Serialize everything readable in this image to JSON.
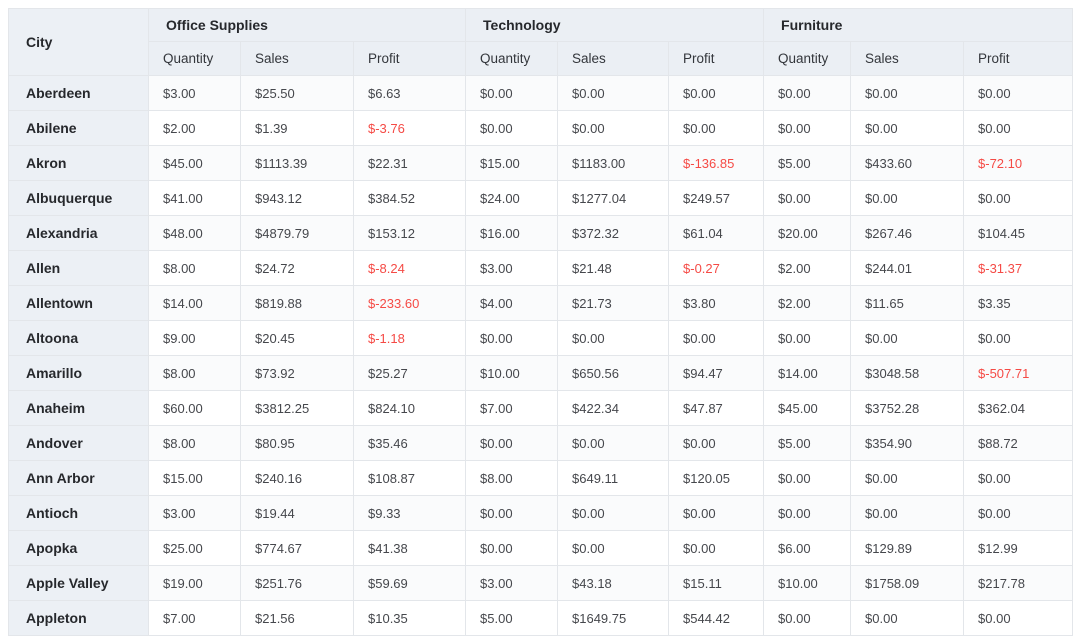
{
  "chart_data": {
    "type": "table",
    "row_header": "City",
    "column_groups": [
      {
        "label": "Office Supplies"
      },
      {
        "label": "Technology"
      },
      {
        "label": "Furniture"
      }
    ],
    "measures": [
      "Quantity",
      "Sales",
      "Profit"
    ],
    "rows": [
      {
        "city": "Aberdeen",
        "values": [
          "$3.00",
          "$25.50",
          "$6.63",
          "$0.00",
          "$0.00",
          "$0.00",
          "$0.00",
          "$0.00",
          "$0.00"
        ]
      },
      {
        "city": "Abilene",
        "values": [
          "$2.00",
          "$1.39",
          "$-3.76",
          "$0.00",
          "$0.00",
          "$0.00",
          "$0.00",
          "$0.00",
          "$0.00"
        ]
      },
      {
        "city": "Akron",
        "values": [
          "$45.00",
          "$1113.39",
          "$22.31",
          "$15.00",
          "$1183.00",
          "$-136.85",
          "$5.00",
          "$433.60",
          "$-72.10"
        ]
      },
      {
        "city": "Albuquerque",
        "values": [
          "$41.00",
          "$943.12",
          "$384.52",
          "$24.00",
          "$1277.04",
          "$249.57",
          "$0.00",
          "$0.00",
          "$0.00"
        ]
      },
      {
        "city": "Alexandria",
        "values": [
          "$48.00",
          "$4879.79",
          "$153.12",
          "$16.00",
          "$372.32",
          "$61.04",
          "$20.00",
          "$267.46",
          "$104.45"
        ]
      },
      {
        "city": "Allen",
        "values": [
          "$8.00",
          "$24.72",
          "$-8.24",
          "$3.00",
          "$21.48",
          "$-0.27",
          "$2.00",
          "$244.01",
          "$-31.37"
        ]
      },
      {
        "city": "Allentown",
        "values": [
          "$14.00",
          "$819.88",
          "$-233.60",
          "$4.00",
          "$21.73",
          "$3.80",
          "$2.00",
          "$11.65",
          "$3.35"
        ]
      },
      {
        "city": "Altoona",
        "values": [
          "$9.00",
          "$20.45",
          "$-1.18",
          "$0.00",
          "$0.00",
          "$0.00",
          "$0.00",
          "$0.00",
          "$0.00"
        ]
      },
      {
        "city": "Amarillo",
        "values": [
          "$8.00",
          "$73.92",
          "$25.27",
          "$10.00",
          "$650.56",
          "$94.47",
          "$14.00",
          "$3048.58",
          "$-507.71"
        ]
      },
      {
        "city": "Anaheim",
        "values": [
          "$60.00",
          "$3812.25",
          "$824.10",
          "$7.00",
          "$422.34",
          "$47.87",
          "$45.00",
          "$3752.28",
          "$362.04"
        ]
      },
      {
        "city": "Andover",
        "values": [
          "$8.00",
          "$80.95",
          "$35.46",
          "$0.00",
          "$0.00",
          "$0.00",
          "$5.00",
          "$354.90",
          "$88.72"
        ]
      },
      {
        "city": "Ann Arbor",
        "values": [
          "$15.00",
          "$240.16",
          "$108.87",
          "$8.00",
          "$649.11",
          "$120.05",
          "$0.00",
          "$0.00",
          "$0.00"
        ]
      },
      {
        "city": "Antioch",
        "values": [
          "$3.00",
          "$19.44",
          "$9.33",
          "$0.00",
          "$0.00",
          "$0.00",
          "$0.00",
          "$0.00",
          "$0.00"
        ]
      },
      {
        "city": "Apopka",
        "values": [
          "$25.00",
          "$774.67",
          "$41.38",
          "$0.00",
          "$0.00",
          "$0.00",
          "$6.00",
          "$129.89",
          "$12.99"
        ]
      },
      {
        "city": "Apple Valley",
        "values": [
          "$19.00",
          "$251.76",
          "$59.69",
          "$3.00",
          "$43.18",
          "$15.11",
          "$10.00",
          "$1758.09",
          "$217.78"
        ]
      },
      {
        "city": "Appleton",
        "values": [
          "$7.00",
          "$21.56",
          "$10.35",
          "$5.00",
          "$1649.75",
          "$544.42",
          "$0.00",
          "$0.00",
          "$0.00"
        ]
      }
    ]
  },
  "colors": {
    "negative": "#f54a45",
    "header_bg": "#ebeff4",
    "row_header_bg": "#ecf0f5",
    "border": "#e3e6ea"
  }
}
